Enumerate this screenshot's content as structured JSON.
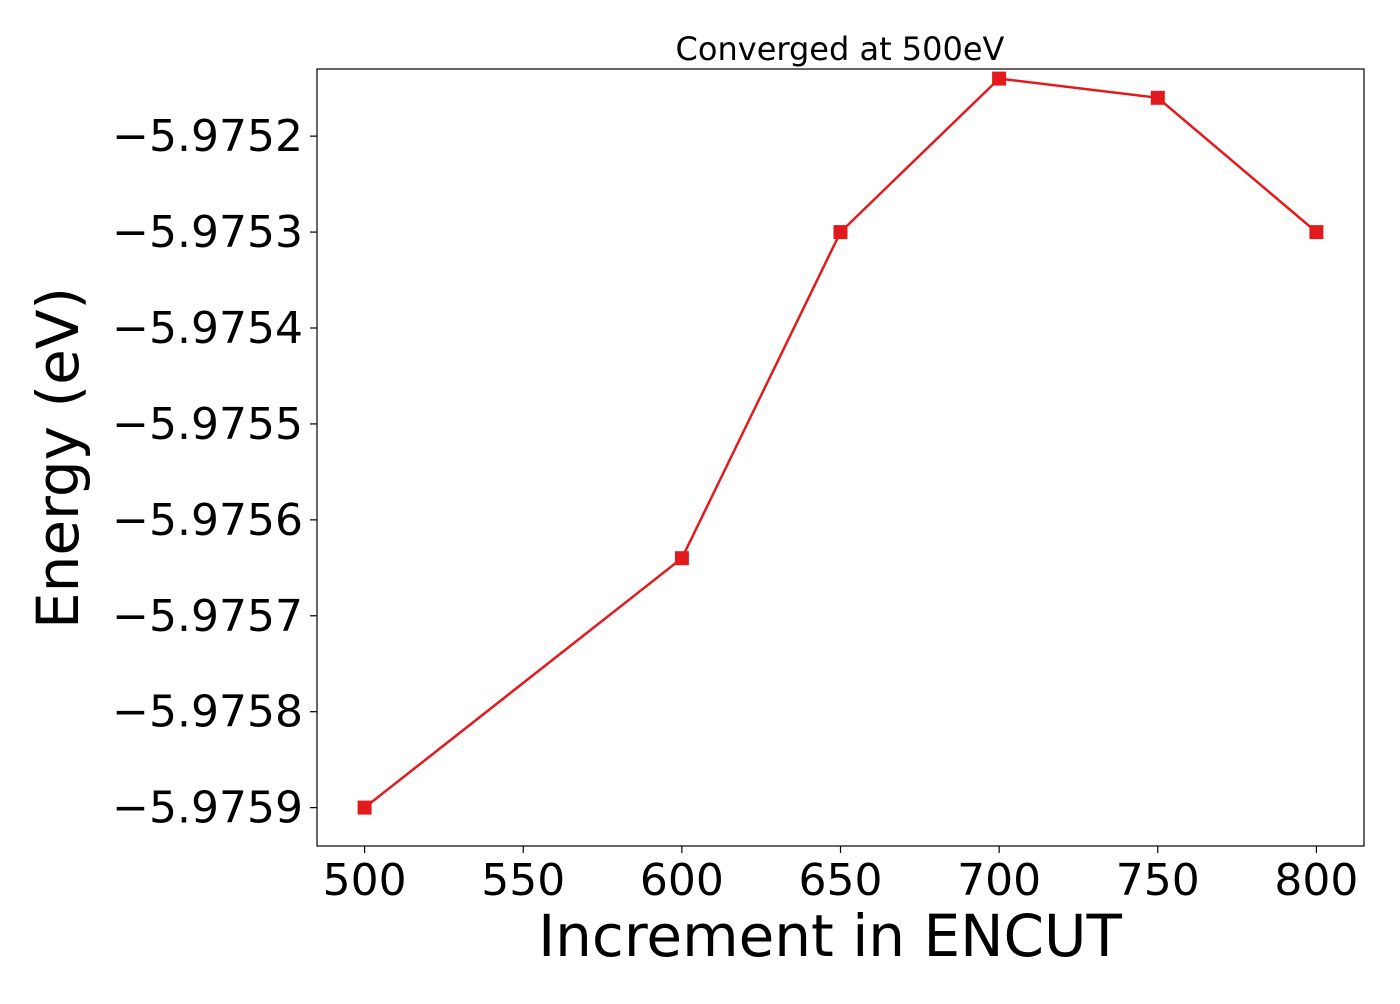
{
  "chart_data": {
    "type": "line",
    "title": "Converged at 500eV",
    "xlabel": "Increment in ENCUT",
    "ylabel": "Energy (eV)",
    "x": [
      500,
      600,
      650,
      700,
      750,
      800
    ],
    "series": [
      {
        "values": [
          -5.9759,
          -5.97564,
          -5.9753,
          -5.97514,
          -5.97516,
          -5.9753
        ],
        "color": "#e31a1c",
        "marker": "square"
      }
    ],
    "xticks": [
      500,
      550,
      600,
      650,
      700,
      750,
      800
    ],
    "xtick_labels": [
      "500",
      "550",
      "600",
      "650",
      "700",
      "750",
      "800"
    ],
    "yticks": [
      -5.9759,
      -5.9758,
      -5.9757,
      -5.9756,
      -5.9755,
      -5.9754,
      -5.9753,
      -5.9752
    ],
    "ytick_labels": [
      "−5.9759",
      "−5.9758",
      "−5.9757",
      "−5.9756",
      "−5.9755",
      "−5.9754",
      "−5.9753",
      "−5.9752"
    ],
    "xlim": [
      485,
      815
    ],
    "ylim": [
      -5.97594,
      -5.97513
    ],
    "grid": false,
    "legend": "none"
  }
}
